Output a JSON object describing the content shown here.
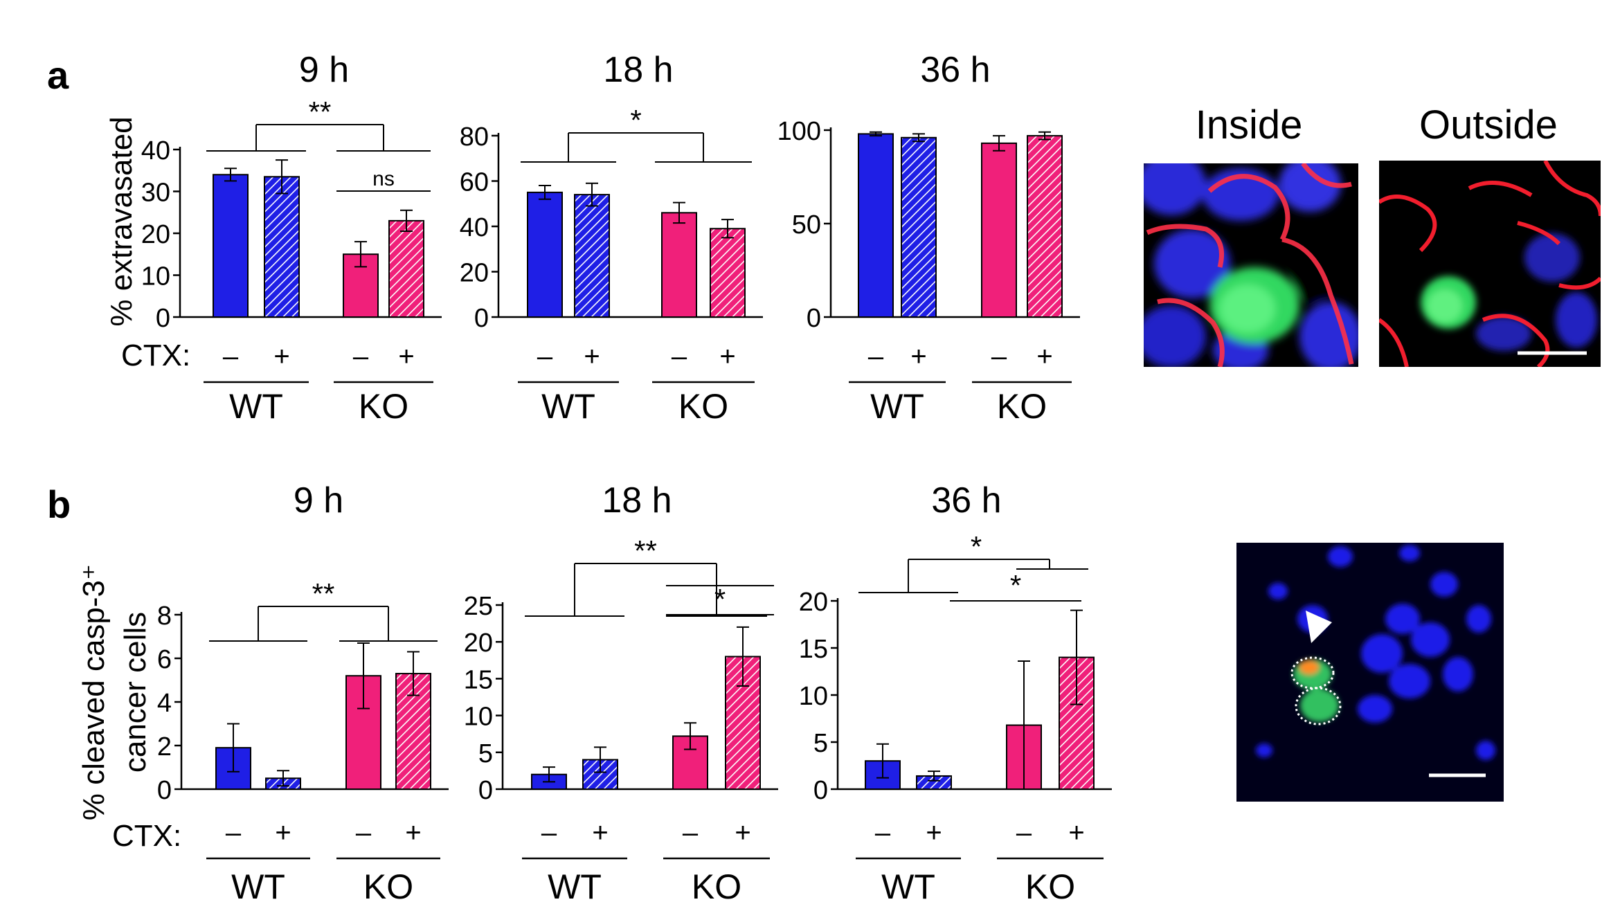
{
  "panel_labels": {
    "a": "a",
    "b": "b"
  },
  "row_a": {
    "ylabel": "% extravasated",
    "ctx_label": "CTX:",
    "minus": "–",
    "plus": "+",
    "group_labels": [
      "WT",
      "KO"
    ],
    "images": {
      "inside": "Inside",
      "outside": "Outside"
    }
  },
  "row_b": {
    "ylabel_line1": "% cleaved casp-3⁺",
    "ylabel_line2": "cancer cells",
    "ctx_label": "CTX:",
    "minus": "–",
    "plus": "+",
    "group_labels": [
      "WT",
      "KO"
    ]
  },
  "colors": {
    "wt": "#1f1fe6",
    "ko": "#f0207a",
    "mic_red": "#ff2030",
    "mic_blue": "#2a2ad8",
    "mic_green": "#2cd85a",
    "mic_orange": "#ff8a20"
  },
  "chart_data": [
    {
      "type": "bar",
      "id": "a-9h",
      "title": "9 h",
      "ylabel": "% extravasated",
      "ylim": [
        0,
        40
      ],
      "yticks": [
        "0",
        "10",
        "20",
        "30",
        "40"
      ],
      "bars": [
        {
          "group": "WT",
          "ctx": "–",
          "value": 34,
          "err": 1.5,
          "hatched": false
        },
        {
          "group": "WT",
          "ctx": "+",
          "value": 33.5,
          "err": 4,
          "hatched": true
        },
        {
          "group": "KO",
          "ctx": "–",
          "value": 15,
          "err": 3,
          "hatched": false
        },
        {
          "group": "KO",
          "ctx": "+",
          "value": 23,
          "err": 2.5,
          "hatched": true
        }
      ],
      "annotations": [
        "**",
        "ns"
      ]
    },
    {
      "type": "bar",
      "id": "a-18h",
      "title": "18 h",
      "ylim": [
        0,
        80
      ],
      "yticks": [
        "0",
        "20",
        "40",
        "60",
        "80"
      ],
      "bars": [
        {
          "group": "WT",
          "ctx": "–",
          "value": 55,
          "err": 3,
          "hatched": false
        },
        {
          "group": "WT",
          "ctx": "+",
          "value": 54,
          "err": 5,
          "hatched": true
        },
        {
          "group": "KO",
          "ctx": "–",
          "value": 46,
          "err": 4.5,
          "hatched": false
        },
        {
          "group": "KO",
          "ctx": "+",
          "value": 39,
          "err": 4,
          "hatched": true
        }
      ],
      "annotations": [
        "*"
      ]
    },
    {
      "type": "bar",
      "id": "a-36h",
      "title": "36 h",
      "ylim": [
        0,
        100
      ],
      "yticks": [
        "0",
        "50",
        "100"
      ],
      "bars": [
        {
          "group": "WT",
          "ctx": "–",
          "value": 98,
          "err": 1,
          "hatched": false
        },
        {
          "group": "WT",
          "ctx": "+",
          "value": 96,
          "err": 2,
          "hatched": true
        },
        {
          "group": "KO",
          "ctx": "–",
          "value": 93,
          "err": 4,
          "hatched": false
        },
        {
          "group": "KO",
          "ctx": "+",
          "value": 97,
          "err": 2,
          "hatched": true
        }
      ],
      "annotations": []
    },
    {
      "type": "bar",
      "id": "b-9h",
      "title": "9 h",
      "ylabel": "% cleaved casp-3⁺ cancer cells",
      "ylim": [
        0,
        8
      ],
      "yticks": [
        "0",
        "2",
        "4",
        "6",
        "8"
      ],
      "bars": [
        {
          "group": "WT",
          "ctx": "–",
          "value": 1.9,
          "err": 1.1,
          "hatched": false
        },
        {
          "group": "WT",
          "ctx": "+",
          "value": 0.5,
          "err": 0.35,
          "hatched": true
        },
        {
          "group": "KO",
          "ctx": "–",
          "value": 5.2,
          "err": 1.5,
          "hatched": false
        },
        {
          "group": "KO",
          "ctx": "+",
          "value": 5.3,
          "err": 1.0,
          "hatched": true
        }
      ],
      "annotations": [
        "**"
      ]
    },
    {
      "type": "bar",
      "id": "b-18h",
      "title": "18 h",
      "ylim": [
        0,
        25
      ],
      "yticks": [
        "0",
        "5",
        "10",
        "15",
        "20",
        "25"
      ],
      "bars": [
        {
          "group": "WT",
          "ctx": "–",
          "value": 2,
          "err": 1,
          "hatched": false
        },
        {
          "group": "WT",
          "ctx": "+",
          "value": 4,
          "err": 1.7,
          "hatched": true
        },
        {
          "group": "KO",
          "ctx": "–",
          "value": 7.2,
          "err": 1.8,
          "hatched": false
        },
        {
          "group": "KO",
          "ctx": "+",
          "value": 18,
          "err": 4,
          "hatched": true
        }
      ],
      "annotations": [
        "**",
        "*"
      ]
    },
    {
      "type": "bar",
      "id": "b-36h",
      "title": "36 h",
      "ylim": [
        0,
        20
      ],
      "yticks": [
        "0",
        "5",
        "10",
        "15",
        "20"
      ],
      "bars": [
        {
          "group": "WT",
          "ctx": "–",
          "value": 3,
          "err": 1.8,
          "hatched": false
        },
        {
          "group": "WT",
          "ctx": "+",
          "value": 1.4,
          "err": 0.5,
          "hatched": true
        },
        {
          "group": "KO",
          "ctx": "–",
          "value": 6.8,
          "err": 6.8,
          "hatched": false
        },
        {
          "group": "KO",
          "ctx": "+",
          "value": 14,
          "err": 5,
          "hatched": true
        }
      ],
      "annotations": [
        "*",
        "*"
      ]
    }
  ]
}
